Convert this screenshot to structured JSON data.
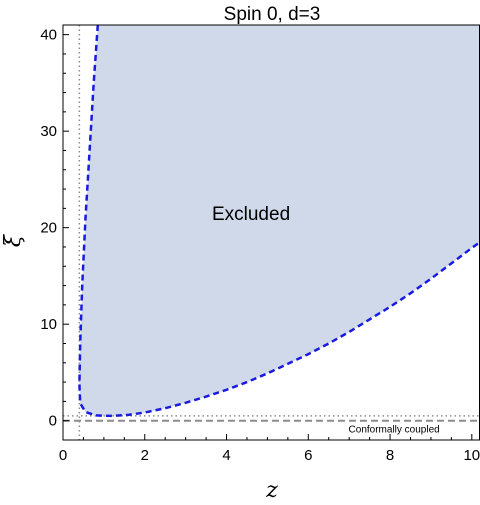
{
  "chart_data": {
    "type": "area",
    "title": "Spin 0, d=3",
    "xlabel": "z",
    "ylabel": "ξ",
    "xlim": [
      0,
      10.2
    ],
    "ylim": [
      -2,
      41
    ],
    "xticks": [
      0,
      2,
      4,
      6,
      8,
      10
    ],
    "yticks": [
      0,
      10,
      20,
      30,
      40
    ],
    "grid": false,
    "colors": {
      "excluded_fill": "#cfd9ea",
      "boundary": "#1a1adf",
      "reference_lines": "#8c8c8c"
    },
    "excluded_region": {
      "label": "Excluded",
      "label_at": {
        "x": 4.6,
        "y": 21.5
      }
    },
    "boundary_curve": {
      "x": [
        0.85,
        0.75,
        0.65,
        0.55,
        0.47,
        0.42,
        0.4,
        0.42,
        0.55,
        0.8,
        1.2,
        1.6,
        2,
        2.5,
        3,
        3.5,
        4,
        4.5,
        5,
        5.5,
        6,
        6.5,
        7,
        7.5,
        8,
        8.5,
        9,
        9.5,
        10,
        10.2
      ],
      "y": [
        41,
        35,
        28,
        21,
        14,
        8,
        3.8,
        1.8,
        0.9,
        0.55,
        0.5,
        0.6,
        0.85,
        1.3,
        1.85,
        2.5,
        3.2,
        4,
        4.9,
        5.9,
        6.9,
        8,
        9.2,
        10.5,
        11.8,
        13.2,
        14.7,
        16.3,
        17.9,
        18.5
      ]
    },
    "reference_lines": [
      {
        "orientation": "vertical",
        "x": 0.4,
        "style": "dotted"
      },
      {
        "orientation": "horizontal",
        "y": 0.5,
        "style": "dotted"
      },
      {
        "orientation": "horizontal",
        "y": 0,
        "style": "dashed",
        "label": "Conformally coupled"
      }
    ]
  }
}
